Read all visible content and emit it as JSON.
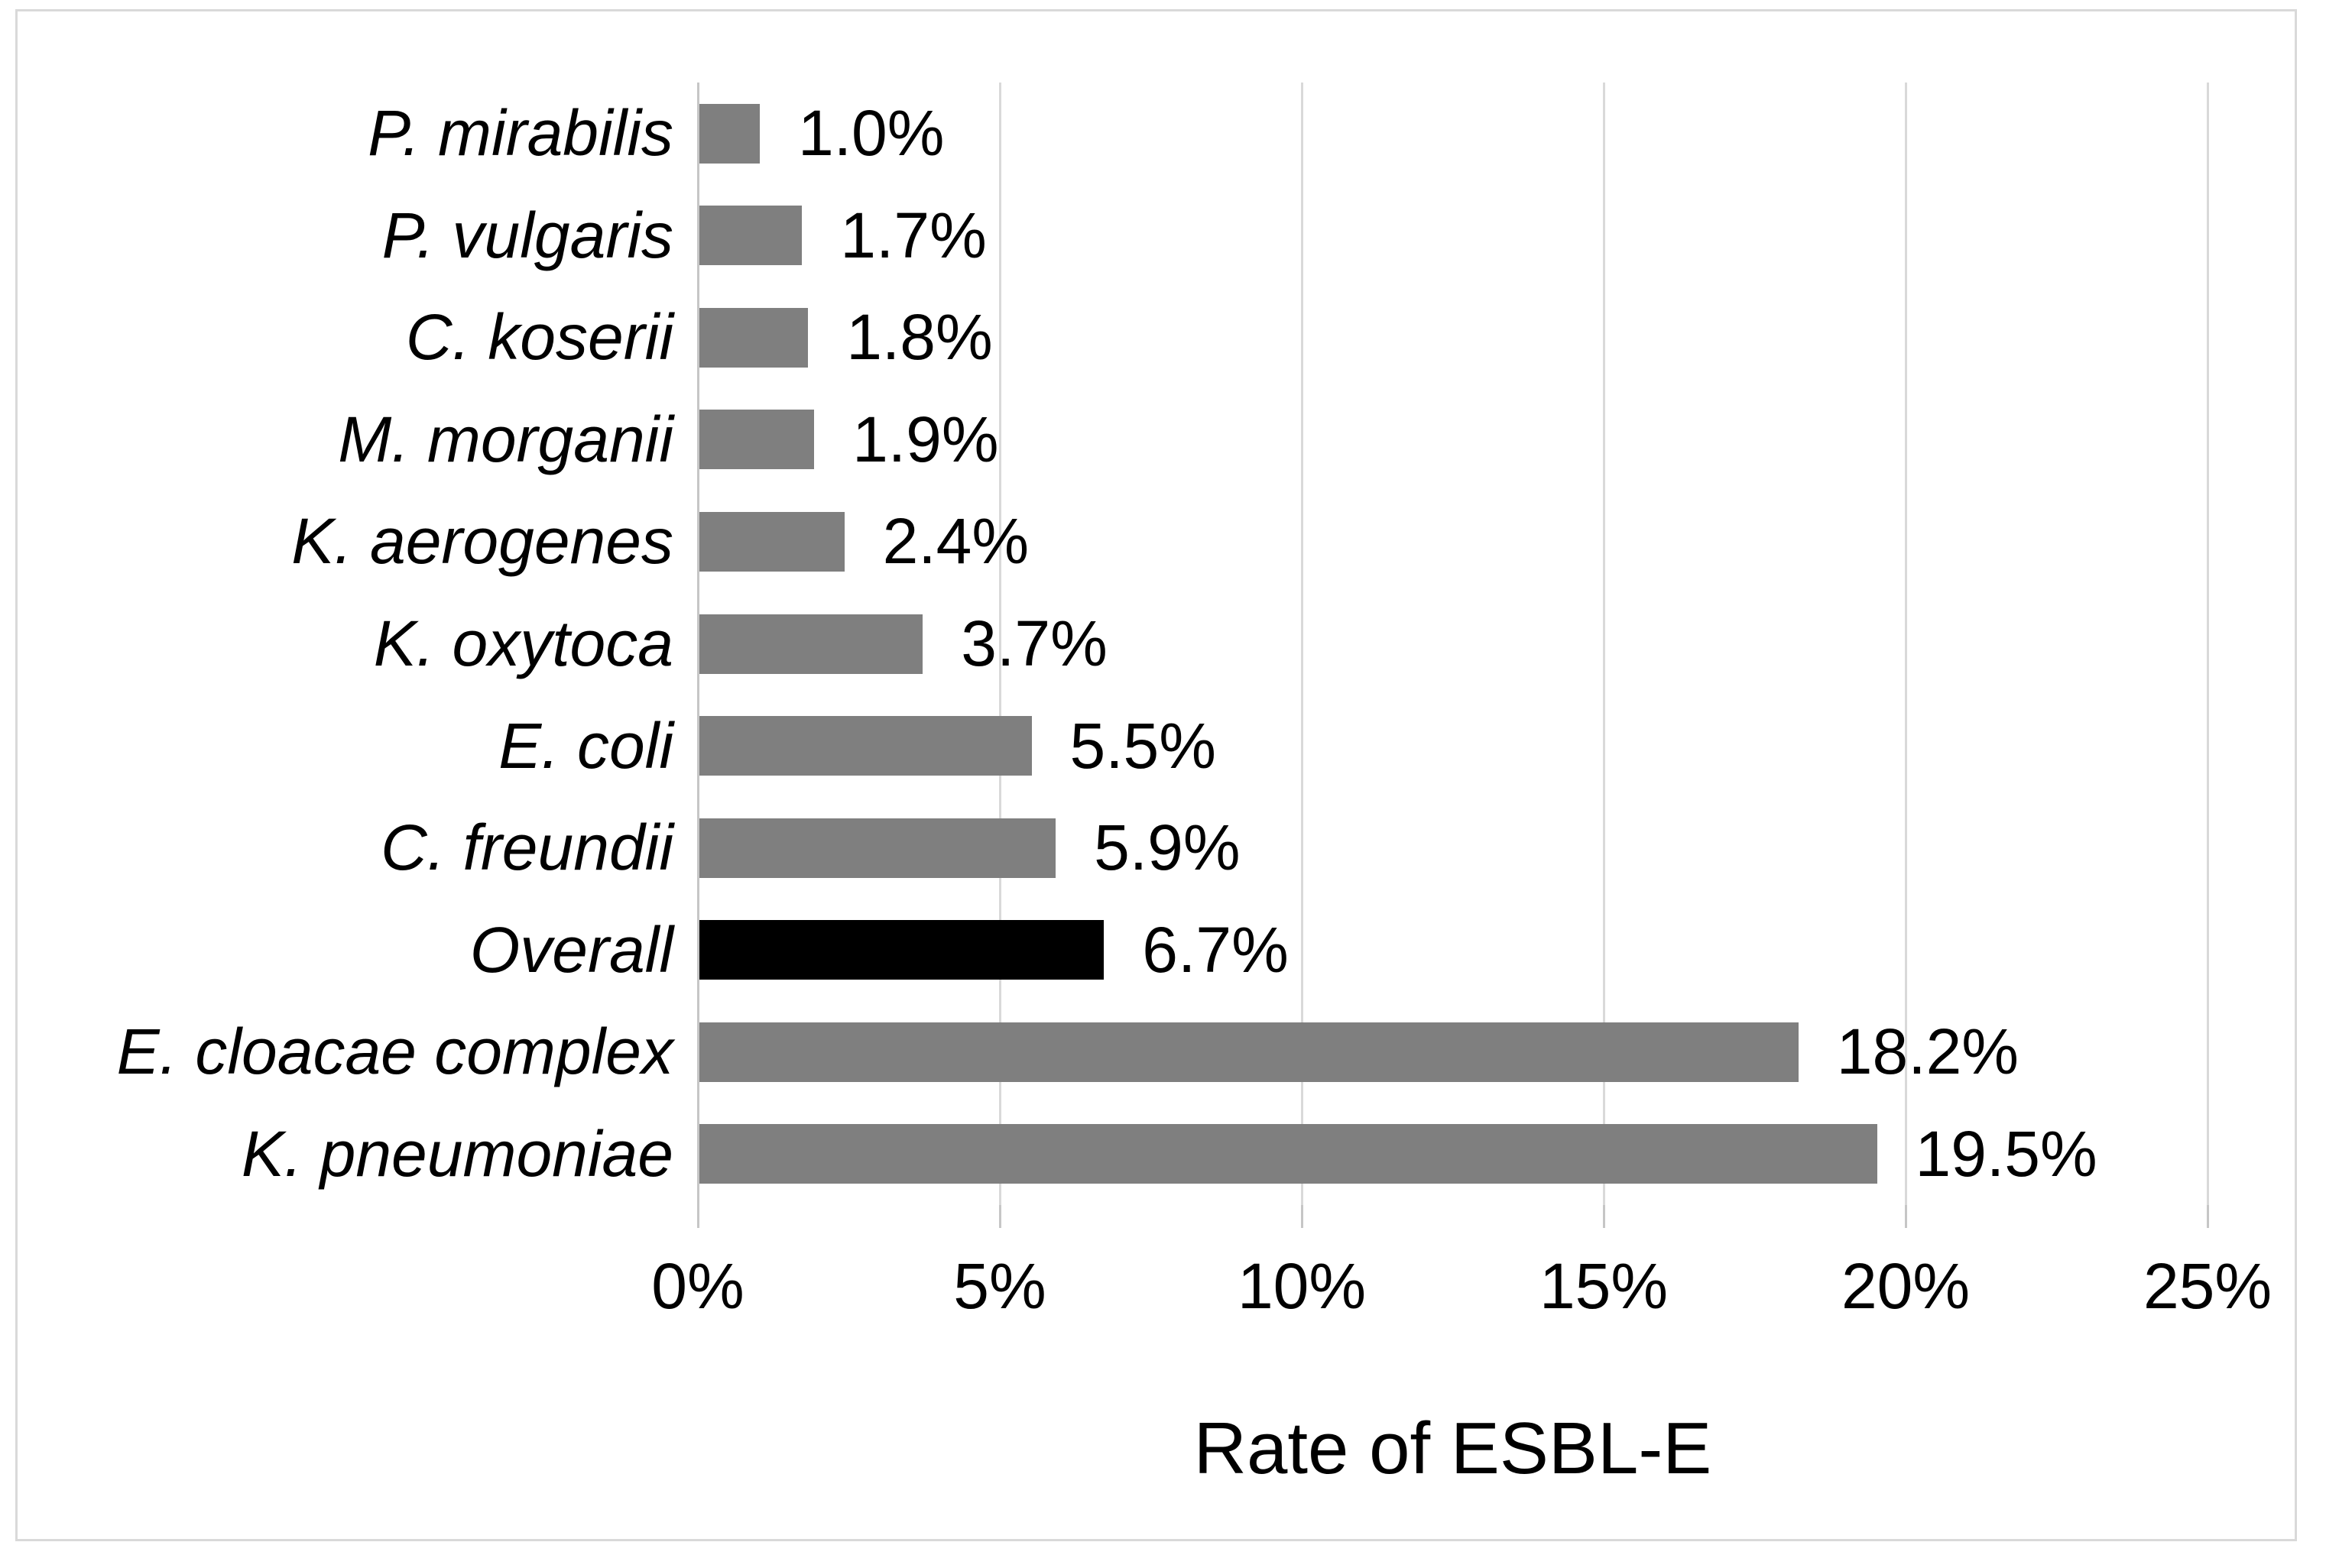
{
  "chart_data": {
    "type": "bar",
    "orientation": "horizontal",
    "title": "",
    "xlabel": "Rate of ESBL-E",
    "ylabel": "",
    "categories": [
      "P. mirabilis",
      "P. vulgaris",
      "C. koserii",
      "M. morganii",
      "K. aerogenes",
      "K. oxytoca",
      "E. coli",
      "C. freundii",
      "Overall",
      "E. cloacae complex",
      "K. pneumoniae"
    ],
    "values": [
      1.0,
      1.7,
      1.8,
      1.9,
      2.4,
      3.7,
      5.5,
      5.9,
      6.7,
      18.2,
      19.5
    ],
    "value_labels": [
      "1.0%",
      "1.7%",
      "1.8%",
      "1.9%",
      "2.4%",
      "3.7%",
      "5.5%",
      "5.9%",
      "6.7%",
      "18.2%",
      "19.5%"
    ],
    "bar_colors": [
      "#7f7f7f",
      "#7f7f7f",
      "#7f7f7f",
      "#7f7f7f",
      "#7f7f7f",
      "#7f7f7f",
      "#7f7f7f",
      "#7f7f7f",
      "#000000",
      "#7f7f7f",
      "#7f7f7f"
    ],
    "highlighted_category": "Overall",
    "x_ticks": [
      "0%",
      "5%",
      "10%",
      "15%",
      "20%",
      "25%"
    ],
    "x_tick_values": [
      0,
      5,
      10,
      15,
      20,
      25
    ],
    "xlim": [
      0,
      25
    ],
    "grid": "vertical-gridlines-on",
    "legend": "none",
    "colors": {
      "bar_default": "#7f7f7f",
      "bar_highlight": "#000000",
      "gridline": "#d9d9d9",
      "axis_line": "#c6c6c6",
      "figure_border": "#d9d9d9",
      "text": "#000000",
      "background": "#ffffff"
    }
  }
}
